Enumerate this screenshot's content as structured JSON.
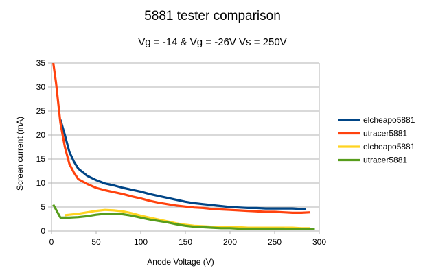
{
  "chart_data": {
    "type": "line",
    "title": "5881 tester comparison",
    "subtitle": "Vg = -14 & Vg = -26V Vs = 250V",
    "xlabel": "Anode Voltage (V)",
    "ylabel": "Screen current (mA)",
    "xlim": [
      0,
      300
    ],
    "ylim": [
      0,
      35
    ],
    "x_ticks": [
      0,
      50,
      100,
      150,
      200,
      250,
      300
    ],
    "y_ticks": [
      0,
      5,
      10,
      15,
      20,
      25,
      30,
      35
    ],
    "grid": true,
    "legend_position": "right",
    "series": [
      {
        "name": "elcheapo5881",
        "color": "#004586",
        "x": [
          10,
          15,
          20,
          25,
          30,
          40,
          50,
          60,
          70,
          80,
          90,
          100,
          110,
          120,
          130,
          140,
          150,
          160,
          170,
          180,
          190,
          200,
          210,
          220,
          230,
          240,
          250,
          260,
          270,
          280,
          285
        ],
        "y": [
          23.2,
          20,
          16.5,
          14.5,
          13,
          11.5,
          10.6,
          9.9,
          9.5,
          9.0,
          8.6,
          8.2,
          7.7,
          7.3,
          6.9,
          6.5,
          6.1,
          5.8,
          5.6,
          5.4,
          5.2,
          5.0,
          4.9,
          4.8,
          4.8,
          4.7,
          4.7,
          4.7,
          4.7,
          4.6,
          4.6
        ]
      },
      {
        "name": "utracer5881",
        "color": "#ff420e",
        "x": [
          2,
          5,
          10,
          15,
          20,
          25,
          30,
          40,
          50,
          60,
          70,
          80,
          90,
          100,
          110,
          120,
          130,
          140,
          150,
          160,
          170,
          180,
          190,
          200,
          210,
          220,
          230,
          240,
          250,
          260,
          270,
          280,
          290
        ],
        "y": [
          35,
          31,
          22.5,
          17.5,
          14,
          12.2,
          10.8,
          9.8,
          9.0,
          8.5,
          8.1,
          7.7,
          7.2,
          6.8,
          6.3,
          5.9,
          5.6,
          5.3,
          5.1,
          4.9,
          4.8,
          4.6,
          4.5,
          4.4,
          4.3,
          4.2,
          4.1,
          4.0,
          4.0,
          3.9,
          3.8,
          3.8,
          3.9
        ]
      },
      {
        "name": "elcheapo5881",
        "color": "#ffd320",
        "x": [
          15,
          20,
          30,
          40,
          50,
          60,
          70,
          80,
          90,
          100,
          110,
          120,
          130,
          140,
          150,
          160,
          170,
          180,
          190,
          200,
          210,
          220,
          230,
          240,
          250,
          260,
          270,
          280,
          290
        ],
        "y": [
          3.3,
          3.4,
          3.6,
          3.9,
          4.2,
          4.4,
          4.3,
          4.1,
          3.7,
          3.2,
          2.8,
          2.4,
          2.0,
          1.6,
          1.3,
          1.1,
          1.0,
          0.9,
          0.9,
          0.8,
          0.8,
          0.7,
          0.7,
          0.7,
          0.7,
          0.7,
          0.7,
          0.6,
          0.6
        ]
      },
      {
        "name": "utracer5881",
        "color": "#579d1c",
        "x": [
          2,
          10,
          20,
          30,
          40,
          50,
          60,
          70,
          80,
          90,
          100,
          110,
          120,
          130,
          140,
          150,
          160,
          170,
          180,
          190,
          200,
          210,
          220,
          230,
          240,
          250,
          260,
          270,
          280,
          290,
          295
        ],
        "y": [
          5.5,
          2.8,
          2.8,
          2.9,
          3.1,
          3.4,
          3.6,
          3.6,
          3.5,
          3.2,
          2.8,
          2.4,
          2.1,
          1.8,
          1.4,
          1.1,
          0.9,
          0.8,
          0.7,
          0.6,
          0.6,
          0.5,
          0.5,
          0.5,
          0.5,
          0.5,
          0.5,
          0.4,
          0.4,
          0.4,
          0.4
        ]
      }
    ]
  }
}
